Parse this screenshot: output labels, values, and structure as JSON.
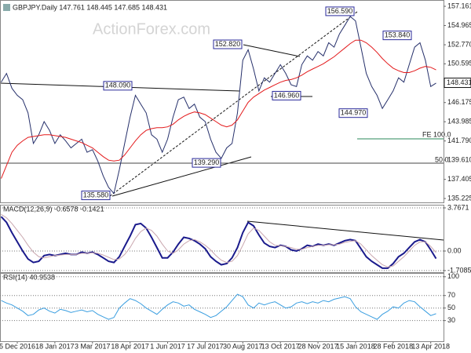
{
  "chart_data": [
    {
      "type": "line",
      "title": "GBPJPY.Daily 147.761 148.445 147.685 148.431",
      "watermark": "ActionForex.com",
      "categories": [
        null,
        null,
        null,
        "5 Dec 2016",
        null,
        null,
        null,
        null,
        null,
        null,
        "18 Jan 2017",
        null,
        null,
        null,
        null,
        null,
        null,
        "3 Mar 2017",
        null,
        null,
        null,
        null,
        null,
        null,
        "18 Apr 2017",
        null,
        null,
        null,
        null,
        null,
        null,
        "1 Jun 2017",
        null,
        null,
        null,
        null,
        null,
        null,
        "17 Jul 2017",
        null,
        null,
        null,
        null,
        null,
        null,
        "30 Aug 2017",
        null,
        null,
        null,
        null,
        null,
        null,
        "13 Oct 2017",
        null,
        null,
        null,
        null,
        null,
        null,
        "28 Nov 2017",
        null,
        null,
        null,
        null,
        null,
        null,
        "15 Jan 2018",
        null,
        null,
        null,
        null,
        null,
        null,
        "28 Feb 2018",
        null,
        null,
        null,
        null,
        null,
        null,
        "13 Apr 2018",
        null
      ],
      "series": [
        {
          "color": "#26306b",
          "values": [
            148.5,
            149.5,
            147.8,
            147.0,
            146.5,
            145.0,
            141.5,
            142.5,
            144.0,
            143.0,
            141.5,
            142.5,
            141.8,
            141.0,
            141.5,
            142.0,
            140.5,
            140.8,
            139.5,
            137.8,
            136.5,
            135.8,
            138.5,
            141.5,
            144.5,
            147.0,
            146.0,
            145.0,
            142.5,
            142.0,
            140.5,
            142.0,
            144.5,
            146.5,
            146.8,
            145.5,
            146.0,
            144.5,
            144.0,
            142.0,
            140.5,
            139.8,
            141.0,
            141.5,
            145.0,
            151.0,
            152.2,
            150.0,
            147.5,
            149.0,
            148.5,
            149.5,
            150.5,
            149.5,
            148.2,
            148.0,
            150.5,
            151.5,
            151.0,
            152.0,
            151.5,
            153.0,
            152.5,
            154.0,
            155.0,
            156.0,
            155.5,
            152.5,
            149.5,
            148.0,
            147.0,
            145.5,
            146.5,
            147.5,
            149.0,
            148.5,
            150.5,
            152.5,
            153.0,
            151.0,
            148.0,
            148.4
          ]
        },
        {
          "color": "#e31a1c",
          "values": [
            137.5,
            139,
            140.5,
            141.3,
            141.8,
            142.2,
            142.3,
            142.4,
            142.5,
            142.5,
            142.4,
            142.3,
            142.2,
            142.0,
            141.8,
            141.6,
            141.3,
            141.0,
            140.5,
            140.0,
            139.6,
            139.5,
            139.6,
            140.2,
            141.0,
            141.8,
            142.5,
            143.0,
            143.2,
            143.3,
            143.3,
            143.4,
            143.7,
            144.2,
            144.6,
            144.9,
            145.1,
            145.0,
            144.8,
            144.4,
            144.0,
            143.6,
            143.4,
            143.6,
            144.2,
            145.2,
            146.2,
            146.8,
            147.2,
            147.6,
            147.9,
            148.2,
            148.5,
            148.7,
            148.8,
            149.0,
            149.3,
            149.7,
            150.0,
            150.3,
            150.6,
            151.0,
            151.4,
            151.9,
            152.4,
            152.9,
            153.3,
            153.3,
            153.0,
            152.5,
            151.9,
            151.2,
            150.6,
            150.1,
            149.8,
            149.6,
            149.6,
            149.8,
            150.1,
            150.3,
            150.2,
            149.9
          ]
        }
      ],
      "ylim": [
        134.78,
        157.88
      ],
      "yticks": [
        {
          "value": 157.161,
          "label": "157.1610"
        },
        {
          "value": 154.965,
          "label": "154.9650"
        },
        {
          "value": 152.77,
          "label": "152.7700"
        },
        {
          "value": 150.595,
          "label": "150.5950"
        },
        {
          "value": 146.175,
          "label": "146.1750"
        },
        {
          "value": 143.985,
          "label": "143.9850"
        },
        {
          "value": 141.79,
          "label": "141.7900"
        },
        {
          "value": 139.61,
          "label": "139.6100"
        },
        {
          "value": 137.405,
          "label": "137.4050"
        },
        {
          "value": 135.225,
          "label": "135.2250"
        }
      ],
      "last_price": 148.431,
      "grid": false,
      "annotations": [
        {
          "value": 156.59,
          "label": "156.590"
        },
        {
          "value": 153.84,
          "label": "153.840"
        },
        {
          "value": 152.82,
          "label": "152.820"
        },
        {
          "value": 148.09,
          "label": "148.090"
        },
        {
          "value": 146.96,
          "label": "146.960"
        },
        {
          "value": 144.97,
          "label": "144.970"
        },
        {
          "value": 139.29,
          "label": "139.290"
        },
        {
          "value": 135.58,
          "label": "135.580"
        }
      ],
      "level_labels": [
        "FE 100.0",
        "50.0"
      ]
    },
    {
      "type": "line",
      "title": "MACD(12,26,9) -0.6578 -0.1421",
      "series": [
        {
          "color": "#1a1a8c",
          "values": [
            3.0,
            2.5,
            1.6,
            0.8,
            0.0,
            -0.7,
            -1.0,
            -0.9,
            -0.4,
            -0.3,
            -0.4,
            -0.3,
            -0.2,
            -0.3,
            -0.3,
            -0.1,
            -0.2,
            -0.1,
            -0.3,
            -0.6,
            -0.9,
            -1.0,
            -0.5,
            0.4,
            1.3,
            2.3,
            2.4,
            2.0,
            1.2,
            0.3,
            -0.6,
            -0.6,
            -0.1,
            0.6,
            1.2,
            1.1,
            0.9,
            0.6,
            0.2,
            -0.5,
            -0.9,
            -1.2,
            -1.1,
            -0.6,
            0.3,
            1.6,
            2.5,
            2.2,
            1.4,
            0.7,
            0.4,
            0.3,
            0.5,
            0.4,
            0.1,
            0.0,
            0.2,
            0.5,
            0.4,
            0.6,
            0.5,
            0.6,
            0.5,
            0.7,
            0.9,
            1.0,
            0.9,
            0.2,
            -0.5,
            -0.9,
            -1.2,
            -1.5,
            -1.5,
            -1.1,
            -0.5,
            -0.2,
            0.3,
            0.8,
            1.0,
            0.8,
            0.1,
            -0.66
          ]
        },
        {
          "color": "#c9a6ae",
          "values": [
            3.2,
            2.9,
            2.4,
            1.8,
            1.2,
            0.5,
            -0.1,
            -0.5,
            -0.6,
            -0.5,
            -0.4,
            -0.35,
            -0.3,
            -0.3,
            -0.3,
            -0.2,
            -0.2,
            -0.15,
            -0.2,
            -0.35,
            -0.55,
            -0.75,
            -0.7,
            -0.3,
            0.3,
            1.1,
            1.7,
            2.0,
            1.8,
            1.3,
            0.6,
            0.0,
            -0.2,
            0.1,
            0.6,
            0.9,
            1.0,
            0.8,
            0.5,
            0.1,
            -0.4,
            -0.8,
            -1.0,
            -0.9,
            -0.4,
            0.5,
            1.5,
            2.0,
            1.8,
            1.3,
            0.8,
            0.5,
            0.45,
            0.4,
            0.3,
            0.15,
            0.15,
            0.3,
            0.4,
            0.5,
            0.5,
            0.55,
            0.55,
            0.6,
            0.75,
            0.85,
            0.9,
            0.6,
            0.1,
            -0.4,
            -0.8,
            -1.2,
            -1.4,
            -1.3,
            -0.9,
            -0.5,
            0.0,
            0.5,
            0.8,
            0.8,
            0.4,
            -0.14
          ]
        }
      ],
      "ylim": [
        -1.85,
        4.04
      ],
      "yticks": [
        3.7671,
        {
          "value": 0,
          "label": "0.00"
        },
        -1.7085
      ],
      "grid": true
    },
    {
      "type": "line",
      "title": "RSI(14) 40.9538",
      "series": [
        {
          "color": "#3a9ee0",
          "values": [
            62,
            58,
            55,
            50,
            45,
            38,
            40,
            47,
            50,
            45,
            42,
            48,
            46,
            43,
            45,
            47,
            44,
            46,
            40,
            36,
            32,
            35,
            50,
            58,
            65,
            62,
            57,
            50,
            45,
            40,
            48,
            55,
            60,
            58,
            53,
            55,
            48,
            44,
            40,
            35,
            38,
            45,
            52,
            62,
            72,
            68,
            55,
            50,
            58,
            55,
            58,
            60,
            55,
            50,
            52,
            58,
            60,
            57,
            60,
            58,
            62,
            60,
            64,
            66,
            68,
            65,
            52,
            44,
            40,
            36,
            32,
            40,
            45,
            52,
            50,
            58,
            62,
            60,
            52,
            45,
            38,
            41
          ]
        }
      ],
      "ylim": [
        -3,
        106
      ],
      "yticks": [
        100,
        70,
        50,
        30
      ],
      "grid": true
    }
  ]
}
